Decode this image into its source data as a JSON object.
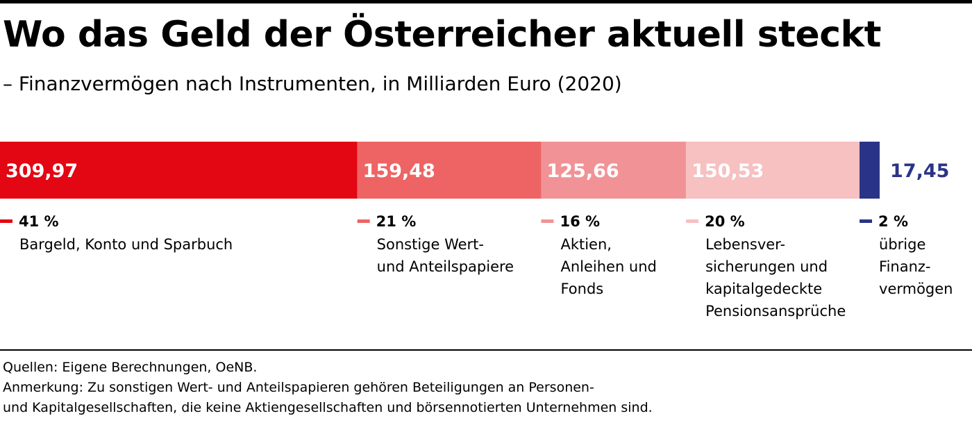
{
  "header": {
    "title": "Wo das Geld der Österreicher aktuell steckt",
    "subtitle": "– Finanzvermögen nach Instrumenten, in Milliarden Euro (2020)"
  },
  "chart_data": {
    "type": "bar",
    "orientation": "horizontal-stacked",
    "categories": [
      "Bargeld, Konto und Sparbuch",
      "Sonstige Wert- und Anteilspapiere",
      "Aktien, Anleihen und Fonds",
      "Lebensversicherungen und kapitalgedeckte Pensionsansprüche",
      "übrige Finanzvermögen"
    ],
    "values": [
      309.97,
      159.48,
      125.66,
      150.53,
      17.45
    ],
    "value_labels": [
      "309,97",
      "159,48",
      "125,66",
      "150,53",
      "17,45"
    ],
    "percent_labels": [
      "41 %",
      "21 %",
      "16 %",
      "20 %",
      "2 %"
    ],
    "category_lines": [
      [
        "Bargeld, Konto und Sparbuch"
      ],
      [
        "Sonstige Wert-",
        "und Anteilspapiere"
      ],
      [
        "Aktien,",
        "Anleihen und",
        "Fonds"
      ],
      [
        "Lebensver-",
        "sicherungen und",
        "kapitalgedeckte",
        "Pensionsansprüche"
      ],
      [
        "übrige",
        "Finanz-",
        "vermögen"
      ]
    ],
    "colors": [
      "#e30613",
      "#ee6464",
      "#f19396",
      "#f7c0c1",
      "#2a3486"
    ],
    "value_label_colors": [
      "#ffffff",
      "#ffffff",
      "#ffffff",
      "#ffffff",
      "#2a3486"
    ],
    "title": "Wo das Geld der Österreicher aktuell steckt",
    "subtitle": "– Finanzvermögen nach Instrumenten, in Milliarden Euro (2020)",
    "xlabel": "",
    "ylabel": ""
  },
  "footer": {
    "source": "Quellen: Eigene Berechnungen, OeNB.",
    "note_line1": "Anmerkung: Zu sonstigen Wert- und Anteilspapieren gehören Beteiligungen an Personen-",
    "note_line2": "und Kapitalgesellschaften, die keine Aktiengesellschaften und börsennotierten Unternehmen sind."
  }
}
